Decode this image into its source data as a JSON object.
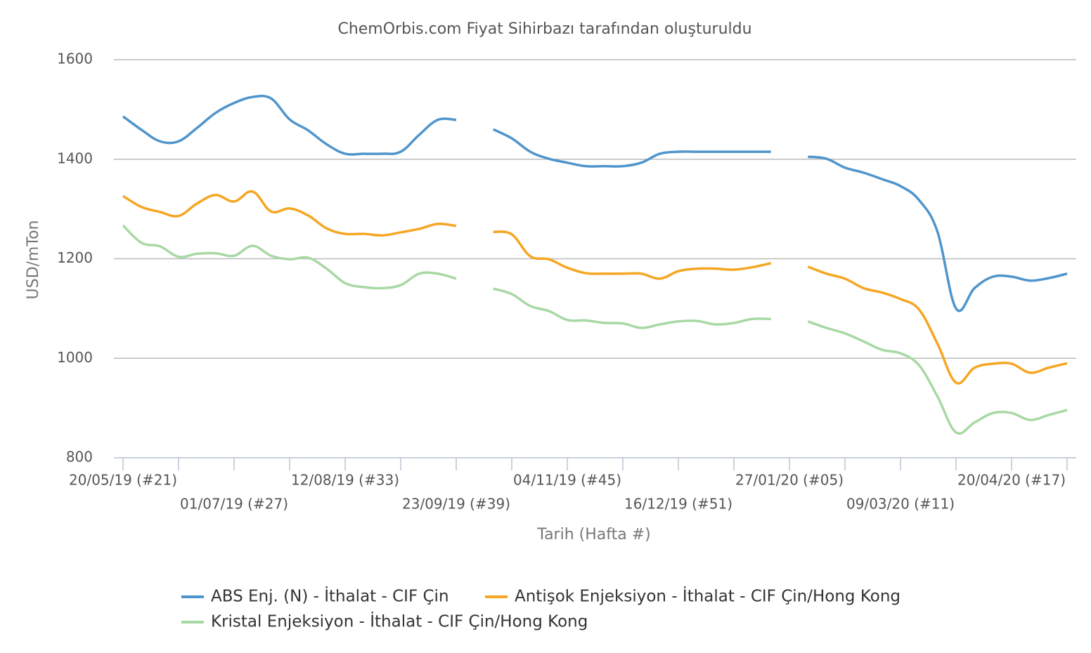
{
  "chart_data": {
    "type": "line",
    "title": "ChemOrbis.com Fiyat Sihirbazı tarafından oluşturuldu",
    "x_label": "Tarih (Hafta #)",
    "y_label": "USD/mTon",
    "categories": [
      "20/05/19 (#21)",
      null,
      null,
      null,
      null,
      null,
      "01/07/19 (#27)",
      null,
      null,
      null,
      null,
      null,
      "12/08/19 (#33)",
      null,
      null,
      null,
      null,
      null,
      "23/09/19 (#39)",
      null,
      null,
      null,
      null,
      null,
      "04/11/19 (#45)",
      null,
      null,
      null,
      null,
      null,
      "16/12/19 (#51)",
      null,
      null,
      null,
      null,
      null,
      "27/01/20 (#05)",
      null,
      null,
      null,
      null,
      null,
      "09/03/20 (#11)",
      null,
      null,
      null,
      null,
      null,
      "20/04/20 (#17)",
      null,
      null,
      null
    ],
    "ylim": [
      800,
      1600
    ],
    "yticks": [
      800,
      1000,
      1200,
      1400,
      1600
    ],
    "grid": true,
    "legend": "bottom",
    "series": [
      {
        "name": "ABS Enj. (N) - İthalat - CIF Çin",
        "color": "#4f95cc",
        "values": [
          1486,
          1459,
          1436,
          1436,
          1463,
          1493,
          1513,
          1525,
          1522,
          1480,
          1458,
          1430,
          1411,
          1411,
          1411,
          1415,
          1449,
          1479,
          1479,
          null,
          1460,
          1442,
          1415,
          1401,
          1393,
          1386,
          1386,
          1386,
          1393,
          1411,
          1415,
          1415,
          1415,
          1415,
          1415,
          1415,
          null,
          1405,
          1401,
          1383,
          1373,
          1360,
          1346,
          1318,
          1254,
          1100,
          1141,
          1164,
          1164,
          1156,
          1161,
          1170
        ]
      },
      {
        "name": "Antişok Enjeksiyon - İthalat - CIF Çin/Hong Kong",
        "color": "#f5a623",
        "values": [
          1326,
          1304,
          1294,
          1286,
          1311,
          1328,
          1315,
          1335,
          1295,
          1301,
          1287,
          1261,
          1250,
          1250,
          1247,
          1253,
          1260,
          1270,
          1266,
          null,
          1254,
          1249,
          1205,
          1199,
          1182,
          1171,
          1170,
          1170,
          1170,
          1160,
          1175,
          1180,
          1180,
          1178,
          1183,
          1191,
          null,
          1184,
          1170,
          1160,
          1141,
          1132,
          1119,
          1098,
          1029,
          951,
          981,
          989,
          989,
          971,
          981,
          990
        ]
      },
      {
        "name": "Kristal Enjeksiyon - İthalat - CIF Çin/Hong Kong",
        "color": "#a8d8a4",
        "values": [
          1267,
          1232,
          1225,
          1204,
          1210,
          1211,
          1206,
          1226,
          1206,
          1199,
          1202,
          1180,
          1151,
          1143,
          1141,
          1147,
          1170,
          1170,
          1160,
          null,
          1140,
          1129,
          1105,
          1095,
          1077,
          1076,
          1071,
          1070,
          1061,
          1068,
          1074,
          1075,
          1068,
          1071,
          1079,
          1079,
          null,
          1074,
          1061,
          1050,
          1034,
          1017,
          1010,
          986,
          923,
          851,
          871,
          890,
          890,
          876,
          886,
          896
        ]
      }
    ]
  }
}
